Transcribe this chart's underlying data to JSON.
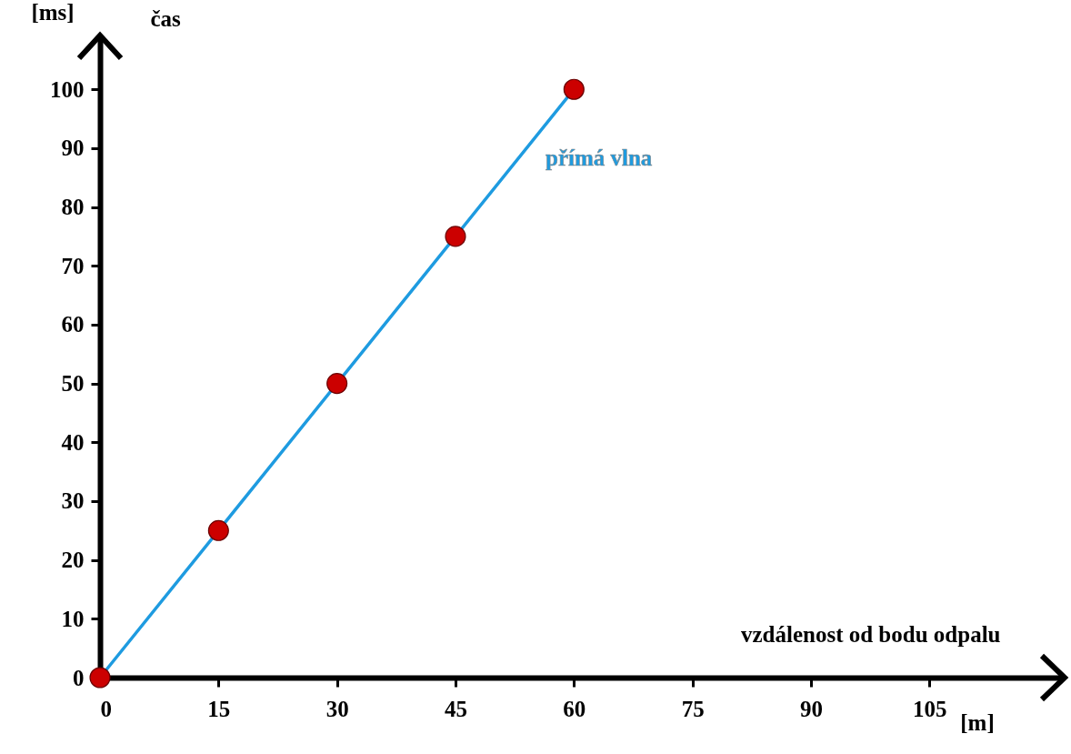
{
  "chart_data": {
    "type": "line",
    "xlabel": "vzdálenost od bodu odpalu",
    "ylabel": "čas",
    "annotations": [
      "[ms]",
      "[m]"
    ],
    "x": [
      0,
      15,
      30,
      45,
      60
    ],
    "series": [
      {
        "name": "přímá vlna",
        "color": "#1e9be0",
        "colors": [
          "#cc0000",
          "#cc0000",
          "#cc0000",
          "#cc0000",
          "#cc0000"
        ],
        "values": [
          0,
          25,
          50,
          75,
          100
        ]
      }
    ],
    "marker": "circle",
    "xlim": [
      0,
      122
    ],
    "ylim": [
      0,
      109
    ],
    "xticks": [
      0,
      15,
      30,
      45,
      60,
      75,
      90,
      105
    ],
    "yticks": [
      0,
      10,
      20,
      30,
      40,
      50,
      60,
      70,
      80,
      90,
      100
    ]
  }
}
